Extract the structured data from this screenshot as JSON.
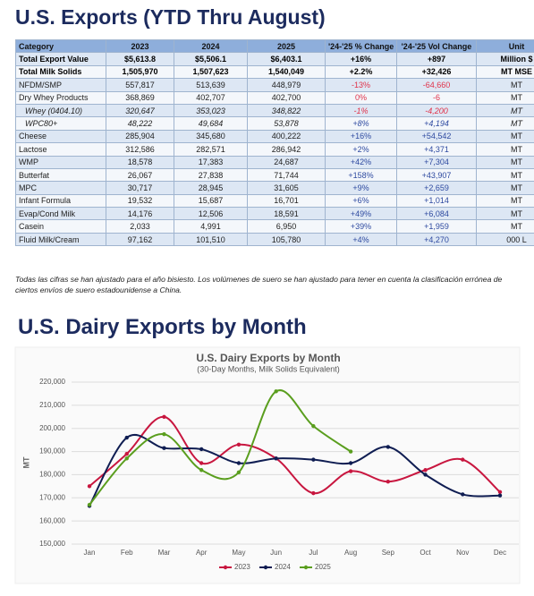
{
  "header": {
    "title": "U.S. Exports (YTD Thru August)"
  },
  "table": {
    "columns": [
      "Category",
      "2023",
      "2024",
      "2025",
      "'24-'25 % Change",
      "'24-'25 Vol Change",
      "Unit"
    ],
    "rows": [
      [
        "Total Export Value",
        "$5,613.8",
        "$5,506.1",
        "$6,403.1",
        "+16%",
        "+897",
        "Million $"
      ],
      [
        "Total Milk Solids",
        "1,505,970",
        "1,507,623",
        "1,540,049",
        "+2.2%",
        "+32,426",
        "MT MSE"
      ],
      [
        "NFDM/SMP",
        "557,817",
        "513,639",
        "448,979",
        "-13%",
        "-64,660",
        "MT"
      ],
      [
        "Dry Whey Products",
        "368,869",
        "402,707",
        "402,700",
        "0%",
        "-6",
        "MT"
      ],
      [
        "Whey (0404.10)",
        "320,647",
        "353,023",
        "348,822",
        "-1%",
        "-4,200",
        "MT"
      ],
      [
        "WPC80+",
        "48,222",
        "49,684",
        "53,878",
        "+8%",
        "+4,194",
        "MT"
      ],
      [
        "Cheese",
        "285,904",
        "345,680",
        "400,222",
        "+16%",
        "+54,542",
        "MT"
      ],
      [
        "Lactose",
        "312,586",
        "282,571",
        "286,942",
        "+2%",
        "+4,371",
        "MT"
      ],
      [
        "WMP",
        "18,578",
        "17,383",
        "24,687",
        "+42%",
        "+7,304",
        "MT"
      ],
      [
        "Butterfat",
        "26,067",
        "27,838",
        "71,744",
        "+158%",
        "+43,907",
        "MT"
      ],
      [
        "MPC",
        "30,717",
        "28,945",
        "31,605",
        "+9%",
        "+2,659",
        "MT"
      ],
      [
        "Infant Formula",
        "19,532",
        "15,687",
        "16,701",
        "+6%",
        "+1,014",
        "MT"
      ],
      [
        "Evap/Cond Milk",
        "14,176",
        "12,506",
        "18,591",
        "+49%",
        "+6,084",
        "MT"
      ],
      [
        "Casein",
        "2,033",
        "4,991",
        "6,950",
        "+39%",
        "+1,959",
        "MT"
      ],
      [
        "Fluid Milk/Cream",
        "97,162",
        "101,510",
        "105,780",
        "+4%",
        "+4,270",
        "000 L"
      ]
    ]
  },
  "note": "Todas las cifras se han ajustado para el año bisiesto. Los volúmenes de suero se han ajustado para tener en cuenta la clasificación errónea de ciertos envíos de suero estadounidense a China.",
  "section_title": "U.S. Dairy Exports by Month",
  "chart_data": {
    "type": "line",
    "title": "U.S. Dairy Exports by Month",
    "subtitle": "(30-Day Months, Milk Solids Equivalent)",
    "ylabel": "MT",
    "categories": [
      "Jan",
      "Feb",
      "Mar",
      "Apr",
      "May",
      "Jun",
      "Jul",
      "Aug",
      "Sep",
      "Oct",
      "Nov",
      "Dec"
    ],
    "series": [
      {
        "name": "2023",
        "color": "#c8163f",
        "values": [
          175000,
          189000,
          205000,
          185000,
          193000,
          187000,
          172000,
          181500,
          177000,
          182000,
          186500,
          172500
        ]
      },
      {
        "name": "2024",
        "color": "#0f1d52",
        "values": [
          166500,
          196000,
          191500,
          191000,
          185000,
          187000,
          186500,
          185000,
          192000,
          180000,
          171500,
          171000
        ]
      },
      {
        "name": "2025",
        "color": "#5a9e1e",
        "values": [
          167000,
          187000,
          197500,
          182000,
          181000,
          216000,
          201000,
          190000,
          null,
          null,
          null,
          null
        ]
      }
    ],
    "ylim": [
      150000,
      220000
    ],
    "yticks": [
      {
        "value": 150000,
        "label": "150,000"
      },
      {
        "value": 160000,
        "label": "160,000"
      },
      {
        "value": 170000,
        "label": "170,000"
      },
      {
        "value": 180000,
        "label": "180,000"
      },
      {
        "value": 190000,
        "label": "190,000"
      },
      {
        "value": 200000,
        "label": "200,000"
      },
      {
        "value": 210000,
        "label": "210,000"
      },
      {
        "value": 220000,
        "label": "220,000"
      }
    ],
    "grid": true,
    "legend": "bottom"
  }
}
